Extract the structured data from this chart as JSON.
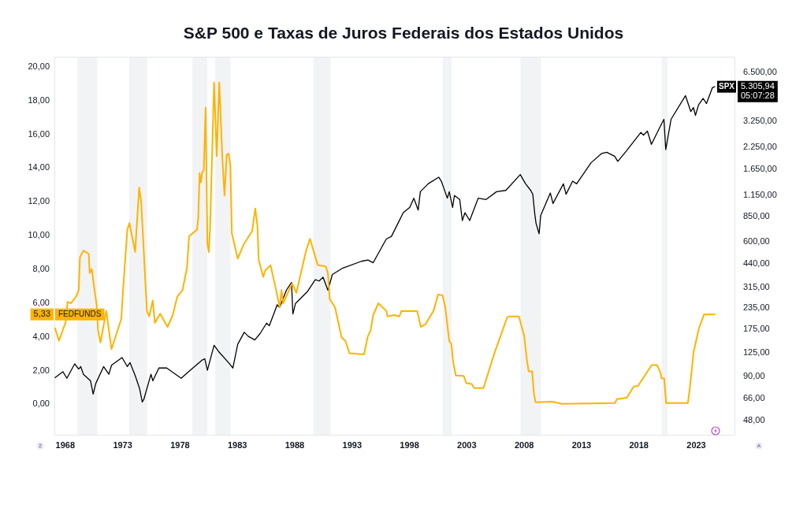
{
  "chart_data": {
    "type": "line",
    "title": "S&P 500 e Taxas de Juros Federais dos Estados Unidos",
    "xlim": [
      1967.05,
      2026.4
    ],
    "xticks": [
      1968,
      1973,
      1978,
      1983,
      1988,
      1993,
      1998,
      2003,
      2008,
      2013,
      2018,
      2023
    ],
    "ylim": [
      -1.85,
      20.6
    ],
    "yticks": [
      {
        "value": 0,
        "label": "0,00"
      },
      {
        "value": 2,
        "label": "2,00"
      },
      {
        "value": 4,
        "label": "4,00"
      },
      {
        "value": 6,
        "label": "6,00"
      },
      {
        "value": 8,
        "label": "8,00"
      },
      {
        "value": 10,
        "label": "10,00"
      },
      {
        "value": 12,
        "label": "12,00"
      },
      {
        "value": 14,
        "label": "14,00"
      },
      {
        "value": 16,
        "label": "16,00"
      },
      {
        "value": 18,
        "label": "18,00"
      },
      {
        "value": 20,
        "label": "20,00"
      }
    ],
    "y2lim": [
      39,
      8100
    ],
    "y2ticks": [
      {
        "value": 48,
        "label": "48,00"
      },
      {
        "value": 66,
        "label": "66,00"
      },
      {
        "value": 90,
        "label": "90,00"
      },
      {
        "value": 125,
        "label": "125,00"
      },
      {
        "value": 175,
        "label": "175,00"
      },
      {
        "value": 235,
        "label": "235,00"
      },
      {
        "value": 315,
        "label": "315,00"
      },
      {
        "value": 440,
        "label": "440,00"
      },
      {
        "value": 600,
        "label": "600,00"
      },
      {
        "value": 850,
        "label": "850,00"
      },
      {
        "value": 1150,
        "label": "1.150,00"
      },
      {
        "value": 1650,
        "label": "1.650,00"
      },
      {
        "value": 2250,
        "label": "2.250,00"
      },
      {
        "value": 3250,
        "label": "3.250,00"
      },
      {
        "value": 6500,
        "label": "6.500,00"
      }
    ],
    "log": "y2",
    "marker": "none",
    "line_style": "solid",
    "bands": [
      {
        "axis": "x",
        "from": 1969.05,
        "to": 1970.8,
        "color": "#f2f3f5"
      },
      {
        "axis": "x",
        "from": 1973.57,
        "to": 1975.13,
        "color": "#f2f3f5"
      },
      {
        "axis": "x",
        "from": 1979.08,
        "to": 1980.38,
        "color": "#f2f3f5"
      },
      {
        "axis": "x",
        "from": 1981.06,
        "to": 1982.4,
        "color": "#f2f3f5"
      },
      {
        "axis": "x",
        "from": 1989.62,
        "to": 1991.13,
        "color": "#f2f3f5"
      },
      {
        "axis": "x",
        "from": 2000.9,
        "to": 2001.68,
        "color": "#f2f3f5"
      },
      {
        "axis": "x",
        "from": 2007.68,
        "to": 2009.47,
        "color": "#f2f3f5"
      },
      {
        "axis": "x",
        "from": 2019.98,
        "to": 2020.49,
        "color": "#f2f3f5"
      }
    ],
    "annotations": [
      "5,33",
      "5.305,94",
      "05:07:28"
    ],
    "series": [
      {
        "name": "FEDFUNDS",
        "color": "#ffb300",
        "x": [
          1967.11,
          1967.45,
          1967.84,
          1968.02,
          1968.2,
          1968.48,
          1968.94,
          1969.17,
          1969.28,
          1969.58,
          1970.04,
          1970.13,
          1970.31,
          1970.5,
          1970.73,
          1970.86,
          1971.07,
          1971.57,
          1972.03,
          1972.88,
          1973.06,
          1973.41,
          1973.59,
          1974.09,
          1974.44,
          1974.62,
          1974.94,
          1975.12,
          1975.31,
          1975.63,
          1975.81,
          1976.27,
          1976.91,
          1977.37,
          1977.76,
          1978.22,
          1978.61,
          1978.79,
          1979.48,
          1979.59,
          1979.71,
          1979.82,
          1979.94,
          1980.07,
          1980.23,
          1980.39,
          1980.51,
          1980.62,
          1980.97,
          1981.2,
          1981.42,
          1981.7,
          1981.88,
          1982.07,
          1982.23,
          1982.39,
          1982.52,
          1983.03,
          1983.56,
          1984.29,
          1984.56,
          1984.75,
          1984.86,
          1985.25,
          1985.44,
          1985.89,
          1986.35,
          1986.69,
          1986.85,
          1986.99,
          1987.77,
          1988.14,
          1988.99,
          1989.33,
          1990.01,
          1990.7,
          1990.89,
          1991.05,
          1991.51,
          1992.08,
          1992.43,
          1992.77,
          1994.03,
          1994.38,
          1994.61,
          1994.84,
          1995.29,
          1995.98,
          1996.09,
          1996.66,
          1997.12,
          1997.3,
          1998.67,
          1998.99,
          1999.4,
          2000.09,
          2000.5,
          2000.89,
          2001.12,
          2001.47,
          2001.65,
          2001.81,
          2002.04,
          2002.73,
          2002.96,
          2003.41,
          2003.64,
          2004.45,
          2005.37,
          2006.51,
          2006.63,
          2007.54,
          2008.0,
          2008.23,
          2008.39,
          2008.69,
          2008.85,
          2008.99,
          2010.41,
          2011.32,
          2015.9,
          2016.09,
          2016.94,
          2017.55,
          2017.92,
          2019.11,
          2019.57,
          2019.84,
          2019.98,
          2020.21,
          2020.37,
          2022.27,
          2022.43,
          2022.77,
          2023.23,
          2023.68,
          2024.6
        ],
        "values": [
          4.51,
          3.77,
          4.51,
          4.82,
          6.07,
          5.99,
          6.38,
          6.77,
          8.72,
          9.11,
          8.92,
          7.78,
          8.02,
          7.0,
          5.91,
          4.36,
          3.66,
          5.53,
          3.27,
          5.06,
          7.0,
          10.35,
          10.74,
          9.03,
          12.84,
          11.98,
          7.78,
          5.53,
          5.21,
          6.15,
          4.82,
          5.37,
          4.59,
          5.29,
          6.38,
          6.77,
          8.09,
          9.96,
          10.35,
          11.05,
          13.7,
          13.15,
          13.77,
          13.85,
          17.59,
          9.49,
          9.03,
          10.43,
          19.07,
          14.71,
          19.07,
          14.47,
          12.37,
          14.79,
          14.86,
          14.16,
          10.12,
          8.64,
          9.49,
          10.27,
          11.6,
          10.58,
          8.56,
          7.55,
          7.94,
          8.25,
          6.85,
          5.76,
          6.77,
          5.99,
          7.16,
          6.61,
          9.11,
          9.81,
          8.25,
          8.17,
          7.78,
          6.23,
          5.76,
          3.97,
          3.74,
          3.03,
          2.96,
          4.05,
          4.36,
          5.29,
          5.99,
          5.53,
          5.21,
          5.29,
          5.21,
          5.53,
          5.53,
          4.59,
          4.75,
          5.53,
          6.51,
          6.46,
          5.76,
          3.74,
          3.58,
          2.49,
          1.71,
          1.68,
          1.25,
          1.21,
          0.96,
          0.96,
          2.96,
          5.14,
          5.21,
          5.21,
          4.05,
          2.65,
          1.95,
          1.95,
          0.62,
          0.12,
          0.16,
          0.03,
          0.08,
          0.31,
          0.39,
          1.06,
          1.09,
          2.33,
          2.33,
          1.95,
          1.53,
          1.53,
          0.08,
          0.08,
          0.93,
          3.11,
          4.51,
          5.33,
          5.33
        ]
      },
      {
        "name": "SPX",
        "color": "#000000",
        "axis": "y2",
        "x": [
          1967.11,
          1967.79,
          1968.14,
          1968.82,
          1969.17,
          1969.35,
          1969.58,
          1970.2,
          1970.43,
          1970.66,
          1971.34,
          1971.8,
          1972.03,
          1972.95,
          1973.41,
          1973.64,
          1974.09,
          1974.48,
          1974.71,
          1974.85,
          1975.47,
          1975.63,
          1976.16,
          1976.84,
          1978.1,
          1979.02,
          1979.94,
          1980.16,
          1980.39,
          1980.97,
          1981.42,
          1982.23,
          1982.61,
          1983.03,
          1983.6,
          1983.94,
          1984.52,
          1984.98,
          1985.55,
          1985.78,
          1986.47,
          1986.69,
          1987.27,
          1987.72,
          1987.84,
          1988.07,
          1989.1,
          1989.79,
          1990.13,
          1990.47,
          1990.89,
          1991.28,
          1992.2,
          1993.81,
          1994.38,
          1994.84,
          1995.98,
          1996.43,
          1997.46,
          1998.03,
          1998.38,
          1998.76,
          1998.95,
          1999.63,
          2000.55,
          2000.78,
          2001.3,
          2001.47,
          2001.76,
          2001.92,
          2002.38,
          2002.61,
          2002.84,
          2003.25,
          2003.99,
          2004.68,
          2005.59,
          2006.4,
          2007.66,
          2008.12,
          2008.57,
          2008.75,
          2008.91,
          2009.03,
          2009.3,
          2009.44,
          2010.28,
          2010.51,
          2011.42,
          2011.65,
          2012.22,
          2012.57,
          2013.83,
          2014.74,
          2015.2,
          2015.88,
          2016.16,
          2016.91,
          2018.17,
          2018.4,
          2018.74,
          2019.09,
          2020.0,
          2020.18,
          2020.34,
          2020.8,
          2022.06,
          2022.52,
          2022.75,
          2022.93,
          2023.2,
          2023.6,
          2023.89,
          2024.4,
          2024.6
        ],
        "values": [
          88.2,
          95.9,
          87.4,
          107,
          99.5,
          103,
          92.5,
          84.3,
          70.0,
          81.2,
          103,
          92.5,
          105,
          117,
          103,
          109,
          90.8,
          75.4,
          62.6,
          65.0,
          92.5,
          84.3,
          101,
          101,
          87.4,
          99.5,
          113,
          115,
          97.8,
          139,
          126,
          109,
          101,
          141,
          167,
          158,
          150,
          164,
          190,
          183,
          246,
          237,
          302,
          337,
          216,
          251,
          296,
          350,
          344,
          363,
          302,
          377,
          413,
          454,
          462,
          445,
          621,
          645,
          900,
          970,
          1104,
          934,
          1210,
          1352,
          1484,
          1403,
          1104,
          1210,
          970,
          1146,
          1084,
          806,
          900,
          806,
          1104,
          1084,
          1210,
          1232,
          1540,
          1352,
          1232,
          1167,
          900,
          777,
          669,
          867,
          1188,
          1025,
          1352,
          1167,
          1403,
          1352,
          1819,
          2070,
          2109,
          1994,
          1854,
          2148,
          2786,
          2685,
          2839,
          2357,
          3172,
          3352,
          2190,
          3352,
          4680,
          3746,
          3960,
          3545,
          4110,
          4500,
          4189,
          5230,
          5305.94
        ]
      }
    ]
  }
}
